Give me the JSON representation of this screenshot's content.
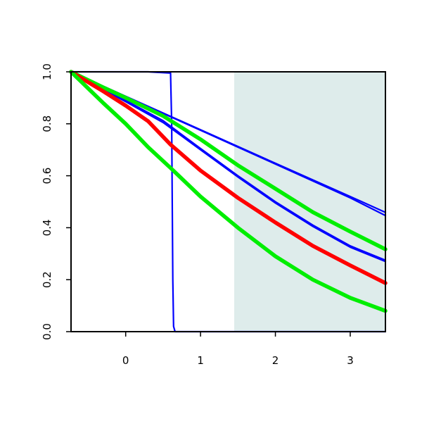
{
  "chart_data": {
    "type": "line",
    "title": "",
    "xlabel": "",
    "ylabel": "",
    "xlim": [
      -0.73,
      3.47
    ],
    "ylim": [
      0,
      1
    ],
    "x_ticks": [
      0,
      1,
      2,
      3
    ],
    "x_tick_labels": [
      "0",
      "1",
      "2",
      "3"
    ],
    "y_ticks": [
      0,
      0.2,
      0.4,
      0.6,
      0.8,
      1
    ],
    "y_tick_labels": [
      "0.0",
      "0.2",
      "0.4",
      "0.6",
      "0.8",
      "1.0"
    ],
    "grid": false,
    "legend": "none",
    "shaded_region": {
      "x_from": 1.45,
      "x_to": 3.47,
      "color": "#deeceb"
    },
    "series": [
      {
        "color": "#0000ff",
        "line_width": "thin",
        "x": [
          -0.73,
          -0.2,
          0.3,
          0.6,
          0.615,
          0.63,
          0.64,
          0.66,
          1.0,
          2.0,
          3.0,
          3.47
        ],
        "y": [
          1.0,
          1.0,
          1.0,
          0.995,
          0.8,
          0.2,
          0.02,
          0.0,
          0.0,
          0.0,
          0.0,
          0.0
        ]
      },
      {
        "color": "#0000ff",
        "line_width": "thin",
        "x": [
          -0.73,
          0.0,
          1.0,
          2.0,
          3.0,
          3.47
        ],
        "y": [
          1.0,
          0.906,
          0.777,
          0.648,
          0.52,
          0.459
        ]
      },
      {
        "color": "#0000ff",
        "line_width": "thin",
        "x": [
          -0.73,
          0.0,
          1.0,
          2.0,
          3.0,
          3.47
        ],
        "y": [
          1.0,
          0.905,
          0.775,
          0.645,
          0.515,
          0.447
        ]
      },
      {
        "color": "#0000ff",
        "line_width": "thin",
        "x": [
          -0.73,
          -0.3,
          0.0,
          0.5,
          1.0,
          1.5,
          2.0,
          2.5,
          3.0,
          3.47
        ],
        "y": [
          1.0,
          0.935,
          0.89,
          0.812,
          0.705,
          0.6,
          0.5,
          0.41,
          0.33,
          0.275
        ]
      },
      {
        "color": "#0000ff",
        "line_width": "thin",
        "x": [
          -0.73,
          -0.3,
          0.0,
          0.5,
          1.0,
          1.5,
          2.0,
          2.5,
          3.0,
          3.47
        ],
        "y": [
          1.0,
          0.932,
          0.885,
          0.805,
          0.7,
          0.595,
          0.495,
          0.405,
          0.325,
          0.27
        ]
      },
      {
        "color": "#00ee00",
        "line_width": "thick",
        "x": [
          -0.73,
          -0.3,
          0.0,
          0.5,
          1.0,
          1.5,
          2.0,
          2.5,
          3.0,
          3.47
        ],
        "y": [
          1.0,
          0.94,
          0.9,
          0.83,
          0.74,
          0.64,
          0.55,
          0.46,
          0.385,
          0.317
        ]
      },
      {
        "color": "#ff0000",
        "line_width": "thick",
        "x": [
          -0.73,
          -0.3,
          0.0,
          0.3,
          0.6,
          1.0,
          1.5,
          2.0,
          2.5,
          3.0,
          3.47
        ],
        "y": [
          1.0,
          0.925,
          0.87,
          0.81,
          0.72,
          0.62,
          0.515,
          0.42,
          0.33,
          0.255,
          0.187
        ]
      },
      {
        "color": "#00ee00",
        "line_width": "thick",
        "x": [
          -0.73,
          -0.3,
          0.0,
          0.3,
          0.6,
          1.0,
          1.5,
          2.0,
          2.5,
          3.0,
          3.47
        ],
        "y": [
          1.0,
          0.88,
          0.8,
          0.71,
          0.63,
          0.52,
          0.4,
          0.29,
          0.2,
          0.13,
          0.08
        ]
      }
    ]
  }
}
